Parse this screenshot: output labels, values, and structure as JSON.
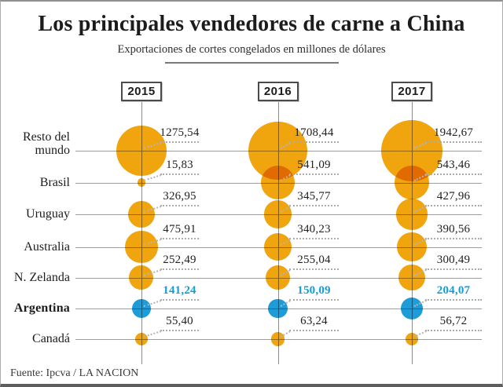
{
  "header": {
    "title": "Los principales vendedores de carne a China",
    "subtitle": "Exportaciones de cortes congelados en millones de dólares"
  },
  "footer": {
    "source": "Fuente: Ipcva / LA NACION"
  },
  "colors": {
    "bubble": "#f0a50f",
    "highlight_bubble": "#1e9cd8",
    "highlight_text": "#0f9ed9",
    "grid_line": "#9e9e9e",
    "text": "#1c1c1c"
  },
  "chart_data": {
    "type": "bubble",
    "title": "Los principales vendedores de carne a China",
    "subtitle": "Exportaciones de cortes congelados en millones de dólares",
    "unit": "millones de dólares",
    "categories": [
      "Resto del mundo",
      "Brasil",
      "Uruguay",
      "Australia",
      "N. Zelanda",
      "Argentina",
      "Canadá"
    ],
    "highlight_category": "Argentina",
    "columns": [
      "2015",
      "2016",
      "2017"
    ],
    "series": [
      {
        "name": "2015",
        "values": [
          1275.54,
          15.83,
          326.95,
          475.91,
          252.49,
          141.24,
          55.4
        ],
        "display": [
          "1275,54",
          "15,83",
          "326,95",
          "475,91",
          "252,49",
          "141,24",
          "55,40"
        ]
      },
      {
        "name": "2016",
        "values": [
          1708.44,
          541.09,
          345.77,
          340.23,
          255.04,
          150.09,
          63.24
        ],
        "display": [
          "1708,44",
          "541,09",
          "345,77",
          "340,23",
          "255,04",
          "150,09",
          "63,24"
        ]
      },
      {
        "name": "2017",
        "values": [
          1942.67,
          543.46,
          427.96,
          390.56,
          300.49,
          204.07,
          56.72
        ],
        "display": [
          "1942,67",
          "543,46",
          "427,96",
          "390,56",
          "300,49",
          "204,07",
          "56,72"
        ]
      }
    ],
    "legend": "none",
    "grid": "horizontal line per category, vertical line per year column",
    "bubble_scale": "area proportional to value"
  }
}
